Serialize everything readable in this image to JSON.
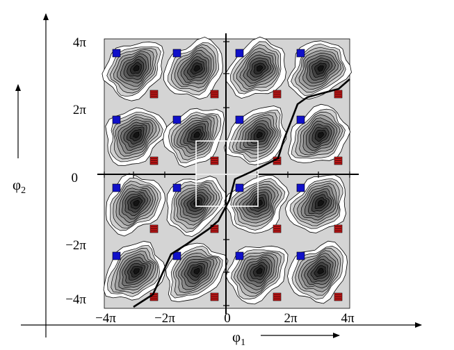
{
  "figure": {
    "y_tick_labels": [
      "4π",
      "2π",
      "0",
      "−2π",
      "−4π"
    ],
    "x_tick_labels": [
      "−4π",
      "−2π",
      "0",
      "2π",
      "4π"
    ],
    "x_axis_label": {
      "base": "φ",
      "sub": "1"
    },
    "y_axis_label": {
      "base": "φ",
      "sub": "2"
    }
  },
  "legend_markers": {
    "blue_marker_color": "#1010c8",
    "red_marker_color": "#d01818"
  },
  "colors": {
    "plot_background": "#d4d4d4",
    "contour_dark": "#141414",
    "contour_light": "#e8e8e8",
    "path_line": "#000000",
    "highlight_box": "#ffffff"
  }
}
